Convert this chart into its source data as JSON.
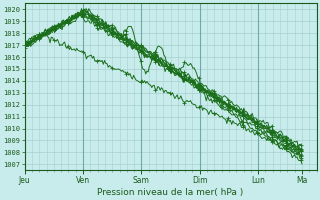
{
  "title": "",
  "xlabel": "Pression niveau de la mer( hPa )",
  "ylabel": "",
  "bg_color": "#c8ecec",
  "grid_color": "#a8cece",
  "line_color": "#1a6e1a",
  "ylim": [
    1006.5,
    1020.5
  ],
  "yticks": [
    1007,
    1008,
    1009,
    1010,
    1011,
    1012,
    1013,
    1014,
    1015,
    1016,
    1017,
    1018,
    1019,
    1020
  ],
  "day_labels": [
    "Jeu",
    "Ven",
    "Sam",
    "Dim",
    "Lun",
    "Ma"
  ],
  "day_positions": [
    0,
    48,
    96,
    144,
    192,
    228
  ],
  "xlim": [
    0,
    240
  ],
  "n_lines": 9
}
